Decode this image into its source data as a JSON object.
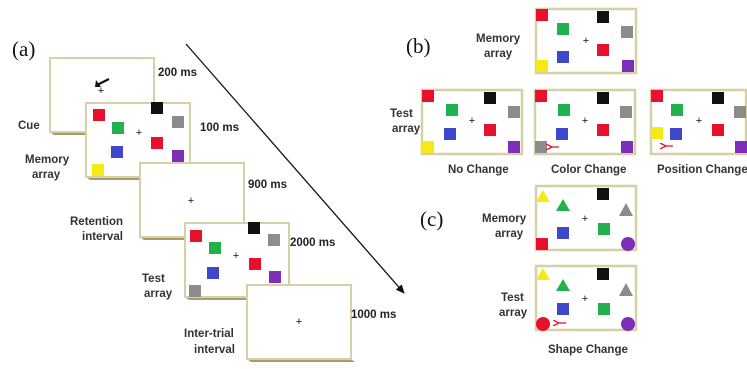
{
  "panel_a": {
    "label": "(a)",
    "stages": [
      {
        "label": [
          "Cue"
        ],
        "time": "200 ms"
      },
      {
        "label": [
          "Memory",
          "array"
        ],
        "time": "100 ms"
      },
      {
        "label": [
          "Retention",
          "interval"
        ],
        "time": "900 ms"
      },
      {
        "label": [
          "Test",
          "array"
        ],
        "time": "2000 ms"
      },
      {
        "label": [
          "Inter-trial",
          "interval"
        ],
        "time": "1000 ms"
      }
    ],
    "fixation": "+"
  },
  "panel_b": {
    "label": "(b)",
    "memory_label": [
      "Memory",
      "array"
    ],
    "test_label": [
      "Test",
      "array"
    ],
    "conditions": [
      "No Change",
      "Color Change",
      "Position Change"
    ]
  },
  "panel_c": {
    "label": "(c)",
    "memory_label": [
      "Memory",
      "array"
    ],
    "test_label": [
      "Test",
      "array"
    ],
    "condition": "Shape Change"
  },
  "colors": {
    "red": "#e8112d",
    "green": "#22b14c",
    "blue": "#3f48cc",
    "black": "#111111",
    "gray": "#8c8c8c",
    "purple": "#7d2fb8",
    "yellow": "#f5ea14",
    "frame": "#d9cfa6"
  }
}
